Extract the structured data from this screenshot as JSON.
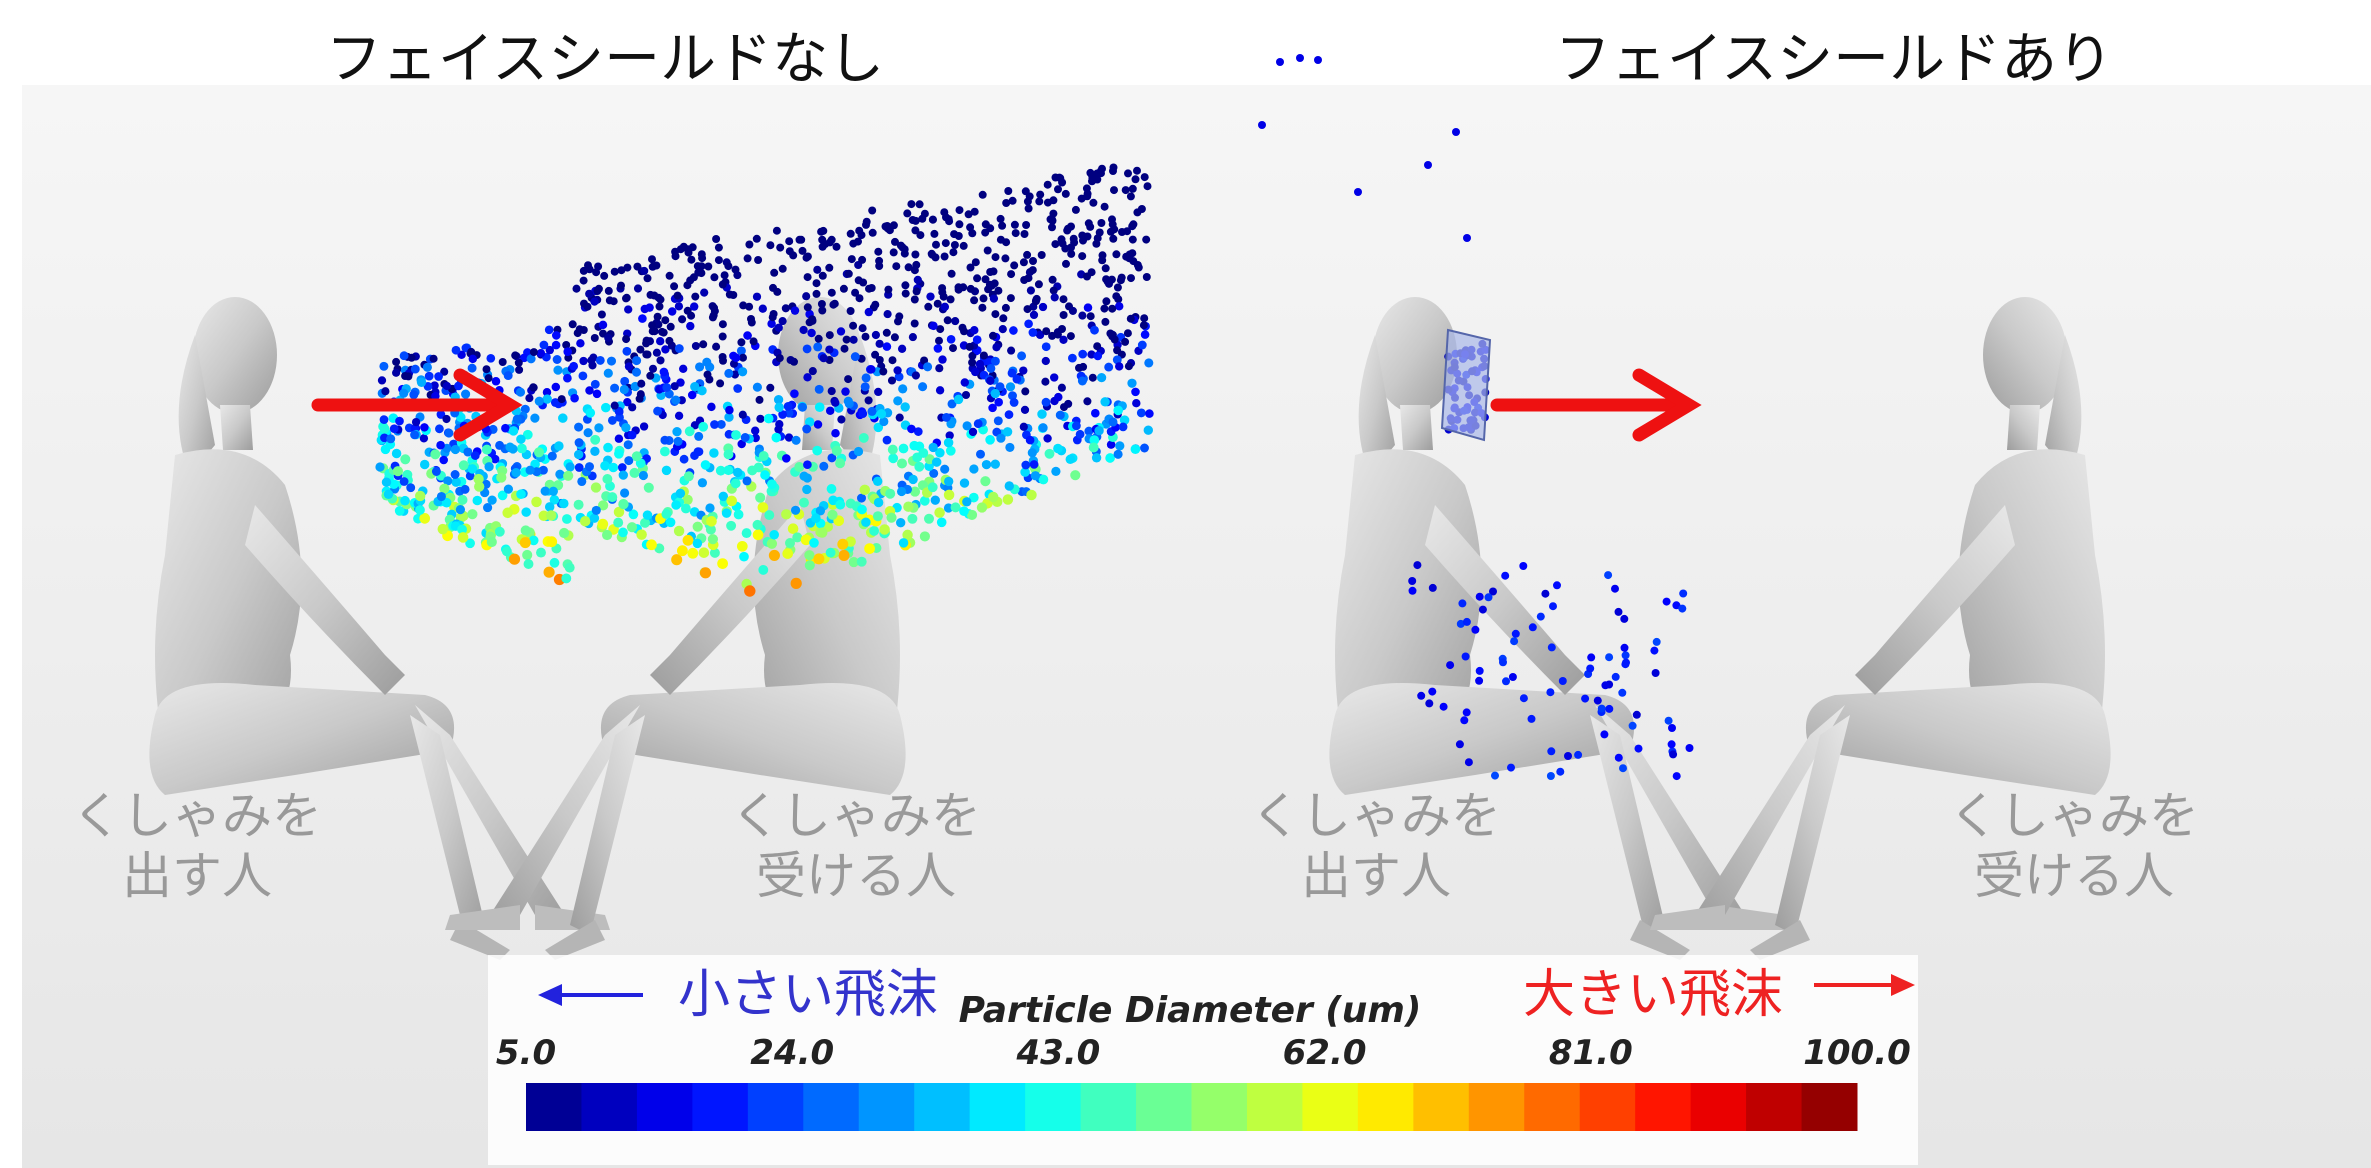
{
  "left_panel": {
    "title": "フェイスシールドなし",
    "sneezer_label": [
      "くしゃみを",
      "出す人"
    ],
    "receiver_label": [
      "くしゃみを",
      "受ける人"
    ]
  },
  "right_panel": {
    "title": "フェイスシールドあり",
    "sneezer_label": [
      "くしゃみを",
      "出す人"
    ],
    "receiver_label": [
      "くしゃみを",
      "受ける人"
    ]
  },
  "colorbar": {
    "title": "Particle Diameter (um)",
    "range": [
      5,
      100
    ],
    "ticks": [
      {
        "value": 5,
        "label": "5.0"
      },
      {
        "value": 24,
        "label": "24.0"
      },
      {
        "value": 43,
        "label": "43.0"
      },
      {
        "value": 62,
        "label": "62.0"
      },
      {
        "value": 81,
        "label": "81.0"
      },
      {
        "value": 100,
        "label": "100.0"
      }
    ],
    "small_label": "小さい飛沫",
    "large_label": "大きい飛沫"
  }
}
